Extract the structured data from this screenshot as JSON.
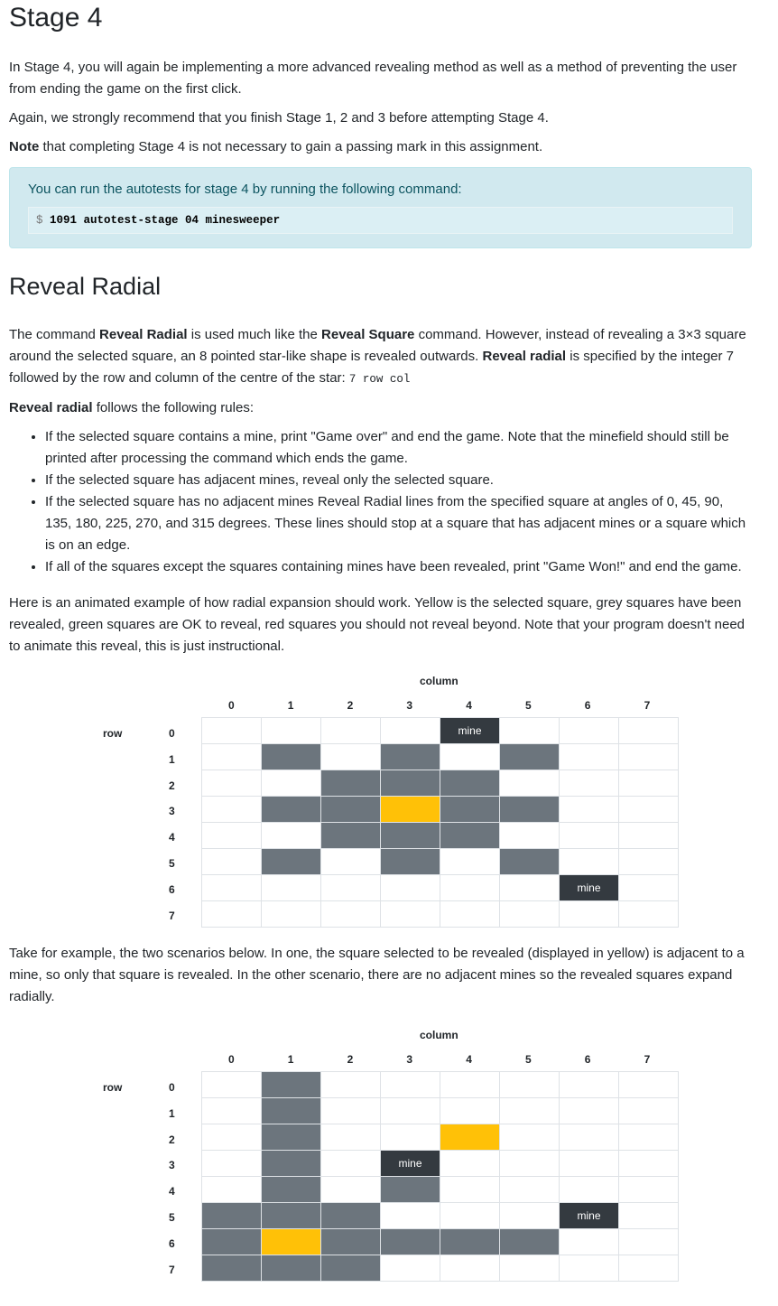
{
  "title": "Stage 4",
  "intro": "In Stage 4, you will again be implementing a more advanced revealing method as well as a method of preventing the user from ending the game on the first click.",
  "recommend": "Again, we strongly recommend that you finish Stage 1, 2 and 3 before attempting Stage 4.",
  "note_bold": "Note",
  "note_rest": " that completing Stage 4 is not necessary to gain a passing mark in this assignment.",
  "alert": {
    "text": "You can run the autotests for stage 4 by running the following command:",
    "prompt": "$",
    "command": "1091 autotest-stage 04 minesweeper"
  },
  "section_title": "Reveal Radial",
  "desc": {
    "p1": "The command ",
    "b1": "Reveal Radial",
    "p2": " is used much like the ",
    "b2": "Reveal Square",
    "p3": " command. However, instead of revealing a 3×3 square around the selected square, an 8 pointed star-like shape is revealed outwards. ",
    "b3": "Reveal radial",
    "p4": " is specified by the integer 7 followed by the row and column of the centre of the star: ",
    "code": "7 row col"
  },
  "rules_intro_bold": "Reveal radial",
  "rules_intro_rest": " follows the following rules:",
  "rules": [
    "If the selected square contains a mine, print \"Game over\" and end the game. Note that the minefield should still be printed after processing the command which ends the game.",
    "If the selected square has adjacent mines, reveal only the selected square.",
    "If the selected square has no adjacent mines Reveal Radial lines from the specified square at angles of 0, 45, 90, 135, 180, 225, 270, and 315 degrees. These lines should stop at a square that has adjacent mines or a square which is on an edge.",
    "If all of the squares except the squares containing mines have been revealed, print \"Game Won!\" and end the game."
  ],
  "animated_text": "Here is an animated example of how radial expansion should work. Yellow is the selected square, grey squares have been revealed, green squares are OK to reveal, red squares you should not reveal beyond. Note that your program doesn't need to animate this reveal, this is just instructional.",
  "scenario_text": "Take for example, the two scenarios below. In one, the square selected to be revealed (displayed in yellow) is adjacent to a mine, so only that square is revealed. In the other scenario, there are no adjacent mines so the revealed squares expand radially.",
  "colors": {
    "revealed": "#6c757d",
    "selected": "#ffc107",
    "mine": "#343a40"
  },
  "grids": [
    {
      "column_label": "column",
      "row_label": "row",
      "columns": [
        "0",
        "1",
        "2",
        "3",
        "4",
        "5",
        "6",
        "7"
      ],
      "rows": [
        "0",
        "1",
        "2",
        "3",
        "4",
        "5",
        "6",
        "7"
      ],
      "mine_text": "mine",
      "cells": [
        [
          "",
          "",
          "",
          "",
          "mine",
          "",
          "",
          ""
        ],
        [
          "",
          "revealed",
          "",
          "revealed",
          "",
          "revealed",
          "",
          ""
        ],
        [
          "",
          "",
          "revealed",
          "revealed",
          "revealed",
          "",
          "",
          ""
        ],
        [
          "",
          "revealed",
          "revealed",
          "selected",
          "revealed",
          "revealed",
          "",
          ""
        ],
        [
          "",
          "",
          "revealed",
          "revealed",
          "revealed",
          "",
          "",
          ""
        ],
        [
          "",
          "revealed",
          "",
          "revealed",
          "",
          "revealed",
          "",
          ""
        ],
        [
          "",
          "",
          "",
          "",
          "",
          "",
          "mine",
          ""
        ],
        [
          "",
          "",
          "",
          "",
          "",
          "",
          "",
          ""
        ]
      ]
    },
    {
      "column_label": "column",
      "row_label": "row",
      "columns": [
        "0",
        "1",
        "2",
        "3",
        "4",
        "5",
        "6",
        "7"
      ],
      "rows": [
        "0",
        "1",
        "2",
        "3",
        "4",
        "5",
        "6",
        "7"
      ],
      "mine_text": "mine",
      "cells": [
        [
          "",
          "revealed",
          "",
          "",
          "",
          "",
          "",
          ""
        ],
        [
          "",
          "revealed",
          "",
          "",
          "",
          "",
          "",
          ""
        ],
        [
          "",
          "revealed",
          "",
          "",
          "selected",
          "",
          "",
          ""
        ],
        [
          "",
          "revealed",
          "",
          "mine",
          "",
          "",
          "",
          ""
        ],
        [
          "",
          "revealed",
          "",
          "revealed",
          "",
          "",
          "",
          ""
        ],
        [
          "revealed",
          "revealed",
          "revealed",
          "",
          "",
          "",
          "mine",
          ""
        ],
        [
          "revealed",
          "selected",
          "revealed",
          "revealed",
          "revealed",
          "revealed",
          "",
          ""
        ],
        [
          "revealed",
          "revealed",
          "revealed",
          "",
          "",
          "",
          "",
          ""
        ]
      ]
    }
  ]
}
